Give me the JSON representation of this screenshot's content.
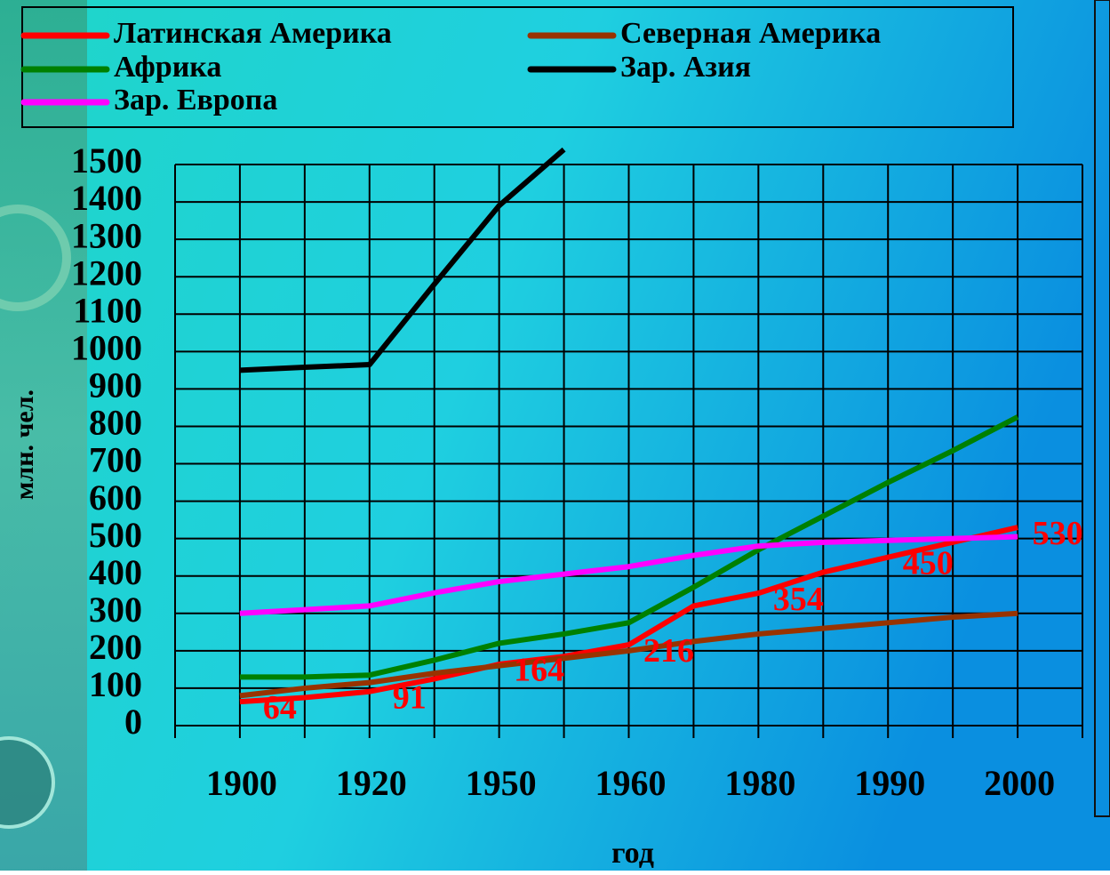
{
  "chart_data": {
    "type": "line",
    "categories": [
      "1900",
      null,
      "1920",
      null,
      "1950",
      null,
      "1960",
      null,
      "1980",
      null,
      "1990",
      null,
      "2000"
    ],
    "series": [
      {
        "name": "Латинская Америка",
        "color": "#ff0000",
        "values": [
          64,
          75,
          91,
          125,
          164,
          185,
          216,
          320,
          354,
          410,
          450,
          490,
          530
        ],
        "value_labels": [
          "64",
          null,
          "91",
          null,
          "164",
          null,
          "216",
          null,
          "354",
          null,
          "450",
          null,
          "530"
        ]
      },
      {
        "name": "Северная Америка",
        "color": "#993300",
        "values": [
          80,
          100,
          115,
          140,
          160,
          180,
          200,
          225,
          245,
          260,
          275,
          290,
          300
        ]
      },
      {
        "name": "Африка",
        "color": "#008000",
        "values": [
          130,
          130,
          135,
          175,
          220,
          245,
          275,
          370,
          470,
          560,
          650,
          735,
          825
        ]
      },
      {
        "name": "Зар. Азия",
        "color": "#000000",
        "values": [
          950,
          958,
          965,
          1180,
          1390,
          1540,
          null,
          null,
          null,
          null,
          null,
          null,
          null
        ]
      },
      {
        "name": "Зар. Европа",
        "color": "#ff00ff",
        "values": [
          300,
          310,
          320,
          355,
          385,
          405,
          425,
          455,
          480,
          490,
          495,
          500,
          505
        ]
      }
    ],
    "ylabel": "млн. чел.",
    "xlabel": "год",
    "ylim": [
      0,
      1500
    ],
    "yticks": [
      0,
      100,
      200,
      300,
      400,
      500,
      600,
      700,
      800,
      900,
      1000,
      1100,
      1200,
      1300,
      1400,
      1500
    ],
    "grid": true
  }
}
